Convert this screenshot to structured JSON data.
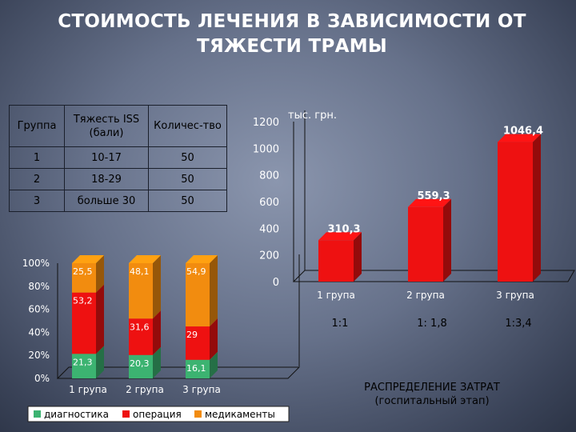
{
  "title": "СТОИМОСТЬ ЛЕЧЕНИЯ В ЗАВИСИМОСТИ ОТ ТЯЖЕСТИ ТРАМЫ",
  "table": {
    "headers": [
      "Группа",
      "Тяжесть ISS (бали)",
      "Количес-тво"
    ],
    "rows": [
      [
        "1",
        "10-17",
        "50"
      ],
      [
        "2",
        "18-29",
        "50"
      ],
      [
        "3",
        "больше 30",
        "50"
      ]
    ]
  },
  "ratios": [
    "1:1",
    "1: 1,8",
    "1:3,4"
  ],
  "distribution_title": "РАСПРЕДЕЛЕНИЕ ЗАТРАТ",
  "distribution_subtitle": "(госпитальный этап)",
  "chart_data": [
    {
      "type": "bar",
      "unit_label": "тыс. грн.",
      "categories": [
        "1 група",
        "2 група",
        "3 група"
      ],
      "values": [
        310.3,
        559.3,
        1046.4
      ],
      "value_labels": [
        "310,3",
        "559,3",
        "1046,4"
      ],
      "ylim": [
        0,
        1200
      ],
      "yticks": [
        0,
        200,
        400,
        600,
        800,
        1000,
        1200
      ],
      "color": "#ee1111",
      "grid": false
    },
    {
      "type": "bar",
      "stacked_percent": true,
      "categories": [
        "1 група",
        "2 група",
        "3 група"
      ],
      "ylim": [
        0,
        100
      ],
      "yticks": [
        "0%",
        "20%",
        "40%",
        "60%",
        "80%",
        "100%"
      ],
      "legend_position": "bottom",
      "series": [
        {
          "name": "диагностика",
          "color": "#3cb371",
          "values": [
            21.3,
            20.3,
            16.1
          ],
          "labels": [
            "21,3",
            "20,3",
            "16,1"
          ]
        },
        {
          "name": "операция",
          "color": "#ee1111",
          "values": [
            53.2,
            31.6,
            29
          ],
          "labels": [
            "53,2",
            "31,6",
            "29"
          ]
        },
        {
          "name": "медикаменты",
          "color": "#f28c0f",
          "values": [
            25.5,
            48.1,
            54.9
          ],
          "labels": [
            "25,5",
            "48,1",
            "54,9"
          ]
        }
      ],
      "grid": false
    }
  ]
}
